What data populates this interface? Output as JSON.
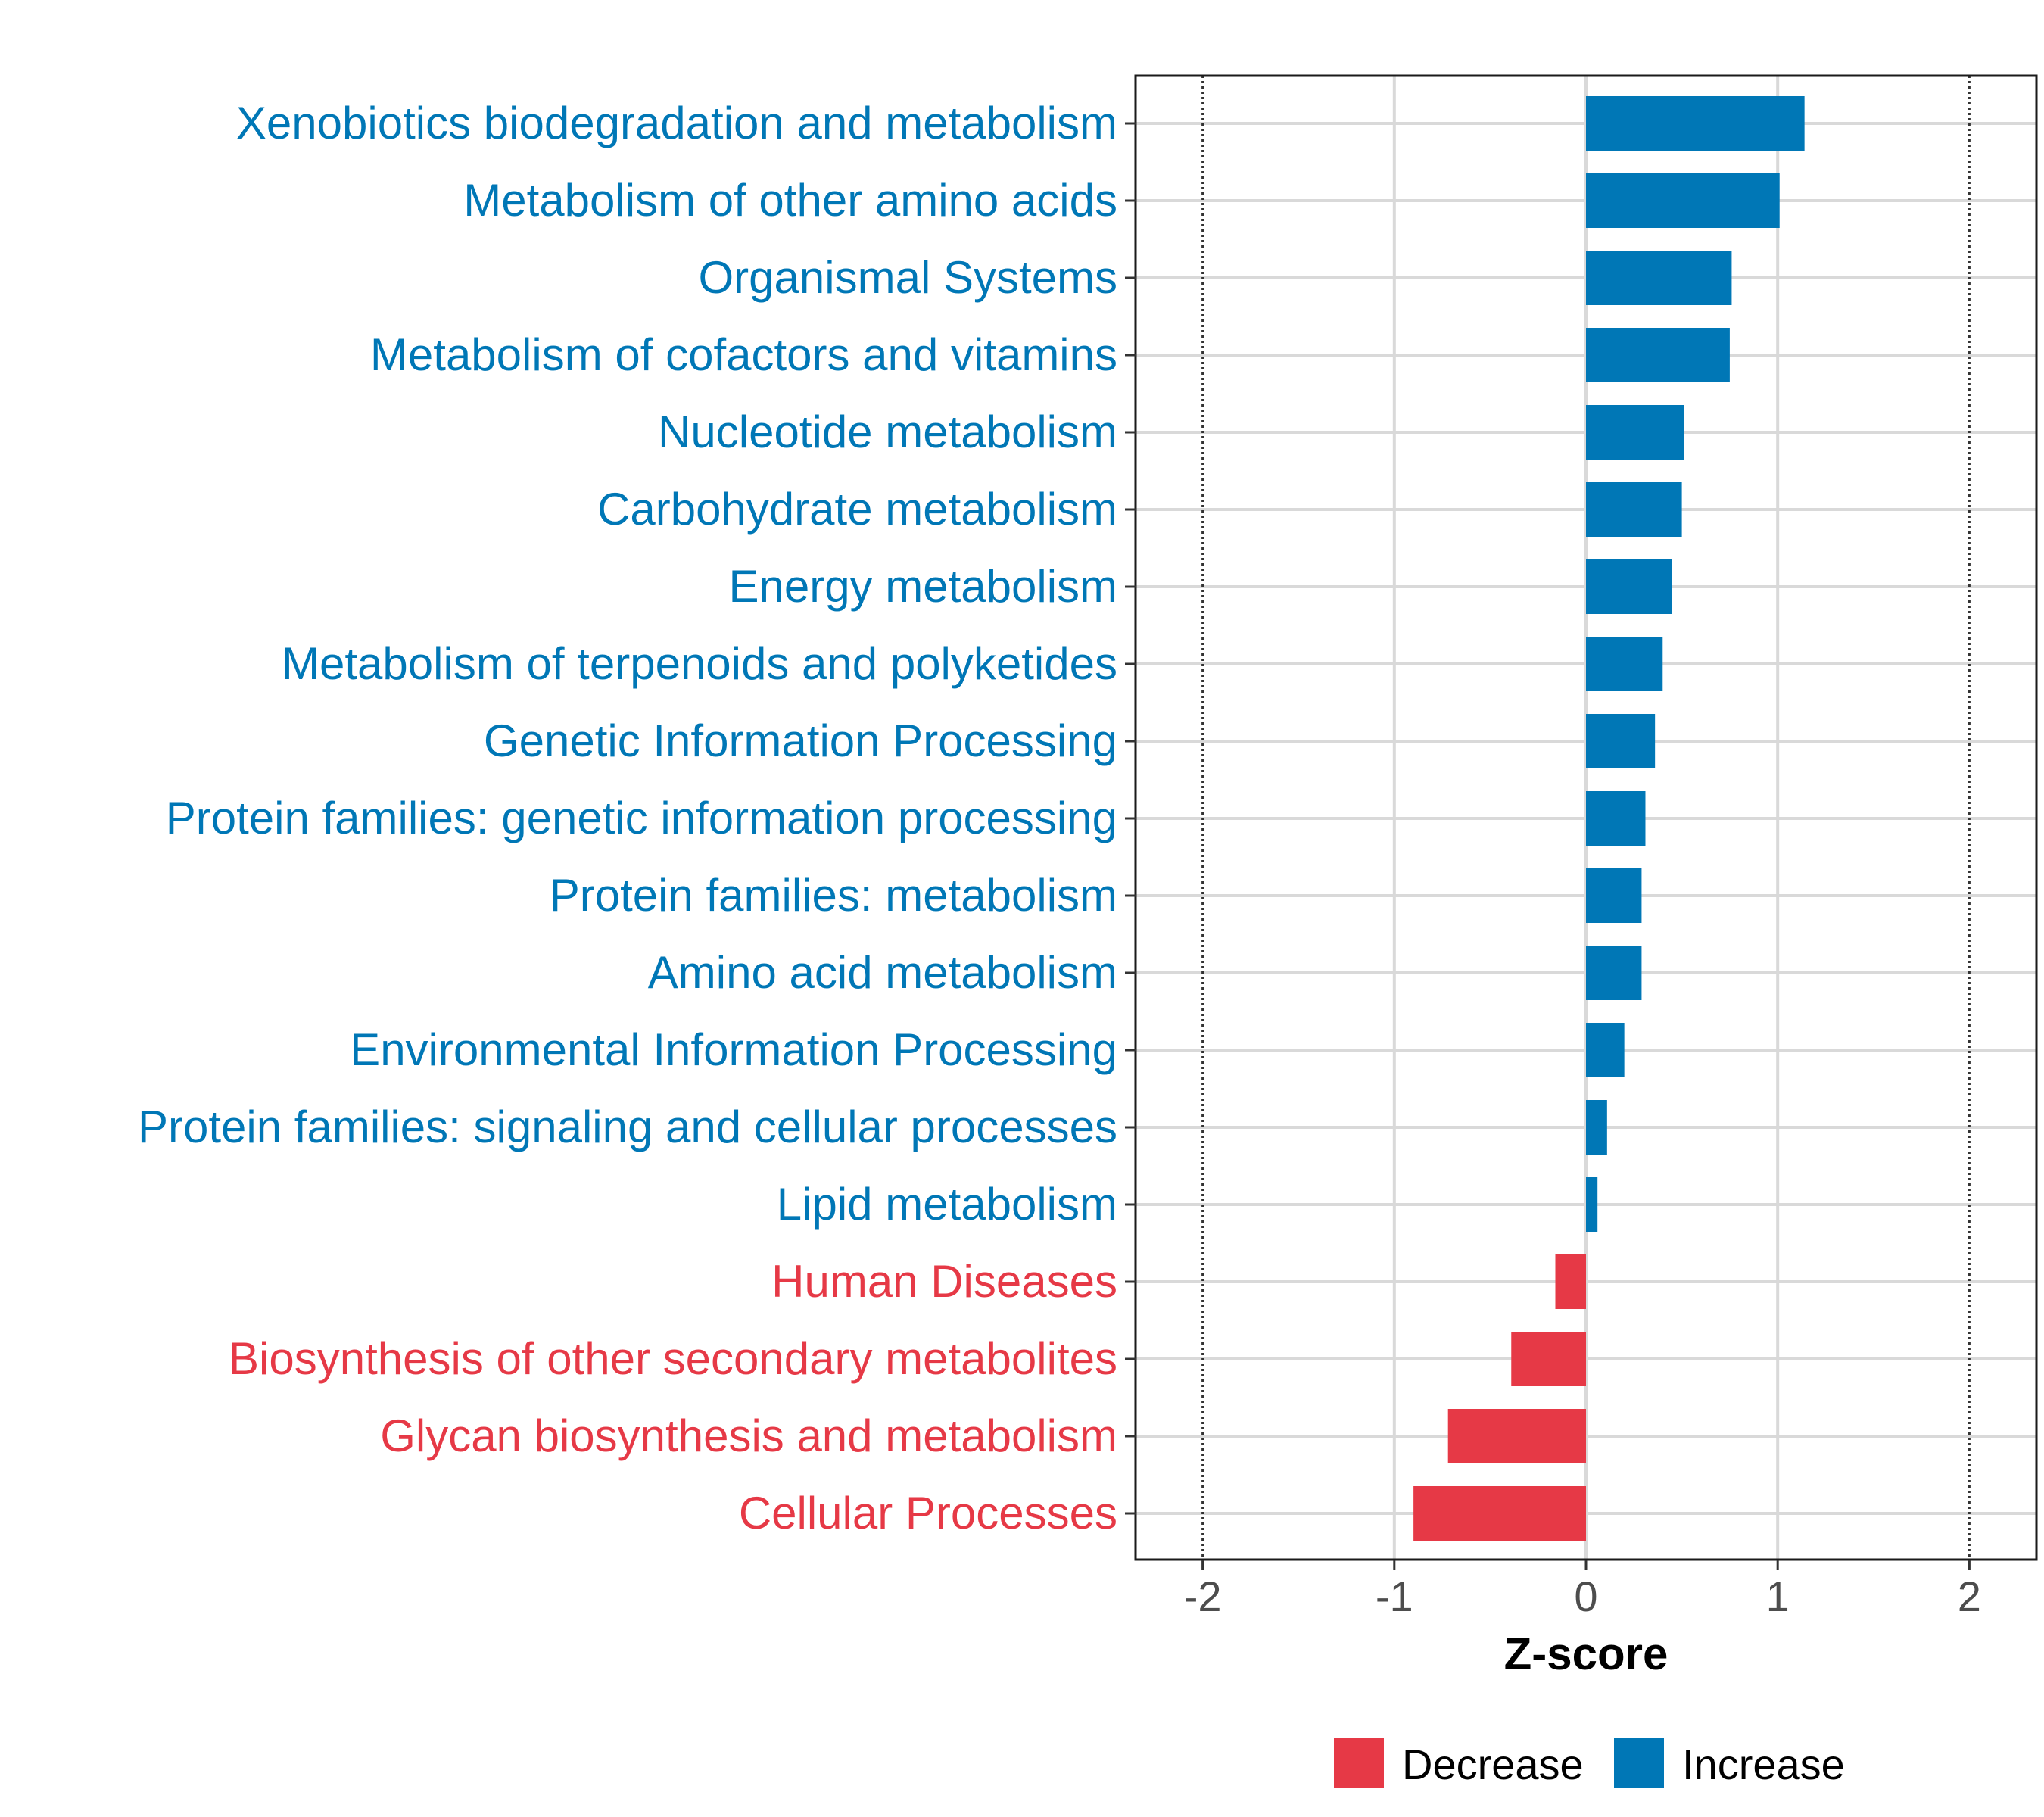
{
  "chart_data": {
    "type": "bar",
    "orientation": "horizontal",
    "title": "",
    "xlabel": "Z-score",
    "ylabel": "",
    "xlim": [
      -2.35,
      2.35
    ],
    "x_ticks": [
      -2,
      -1,
      0,
      1,
      2
    ],
    "x_tick_labels": [
      "-2",
      "-1",
      "0",
      "1",
      "2"
    ],
    "reference_lines": [
      -2,
      2
    ],
    "grid": true,
    "legend_position": "bottom",
    "categories": [
      "Xenobiotics biodegradation and metabolism",
      "Metabolism of other amino acids",
      "Organismal Systems",
      "Metabolism of cofactors and vitamins",
      "Nucleotide metabolism",
      "Carbohydrate metabolism",
      "Energy metabolism",
      "Metabolism of terpenoids and polyketides",
      "Genetic Information Processing",
      "Protein families: genetic information processing",
      "Protein families: metabolism",
      "Amino acid metabolism",
      "Environmental Information Processing",
      "Protein families: signaling and cellular processes",
      "Lipid metabolism",
      "Human Diseases",
      "Biosynthesis of other secondary metabolites",
      "Glycan biosynthesis and metabolism",
      "Cellular Processes"
    ],
    "values": [
      1.14,
      1.01,
      0.76,
      0.75,
      0.51,
      0.5,
      0.45,
      0.4,
      0.36,
      0.31,
      0.29,
      0.29,
      0.2,
      0.11,
      0.06,
      -0.16,
      -0.39,
      -0.72,
      -0.9
    ],
    "groups": [
      "Increase",
      "Increase",
      "Increase",
      "Increase",
      "Increase",
      "Increase",
      "Increase",
      "Increase",
      "Increase",
      "Increase",
      "Increase",
      "Increase",
      "Increase",
      "Increase",
      "Increase",
      "Decrease",
      "Decrease",
      "Decrease",
      "Decrease"
    ],
    "legend": [
      {
        "name": "Decrease",
        "color": "#e63946"
      },
      {
        "name": "Increase",
        "color": "#0077b6"
      }
    ],
    "colors": {
      "Decrease": "#e63946",
      "Increase": "#0077b6"
    }
  }
}
